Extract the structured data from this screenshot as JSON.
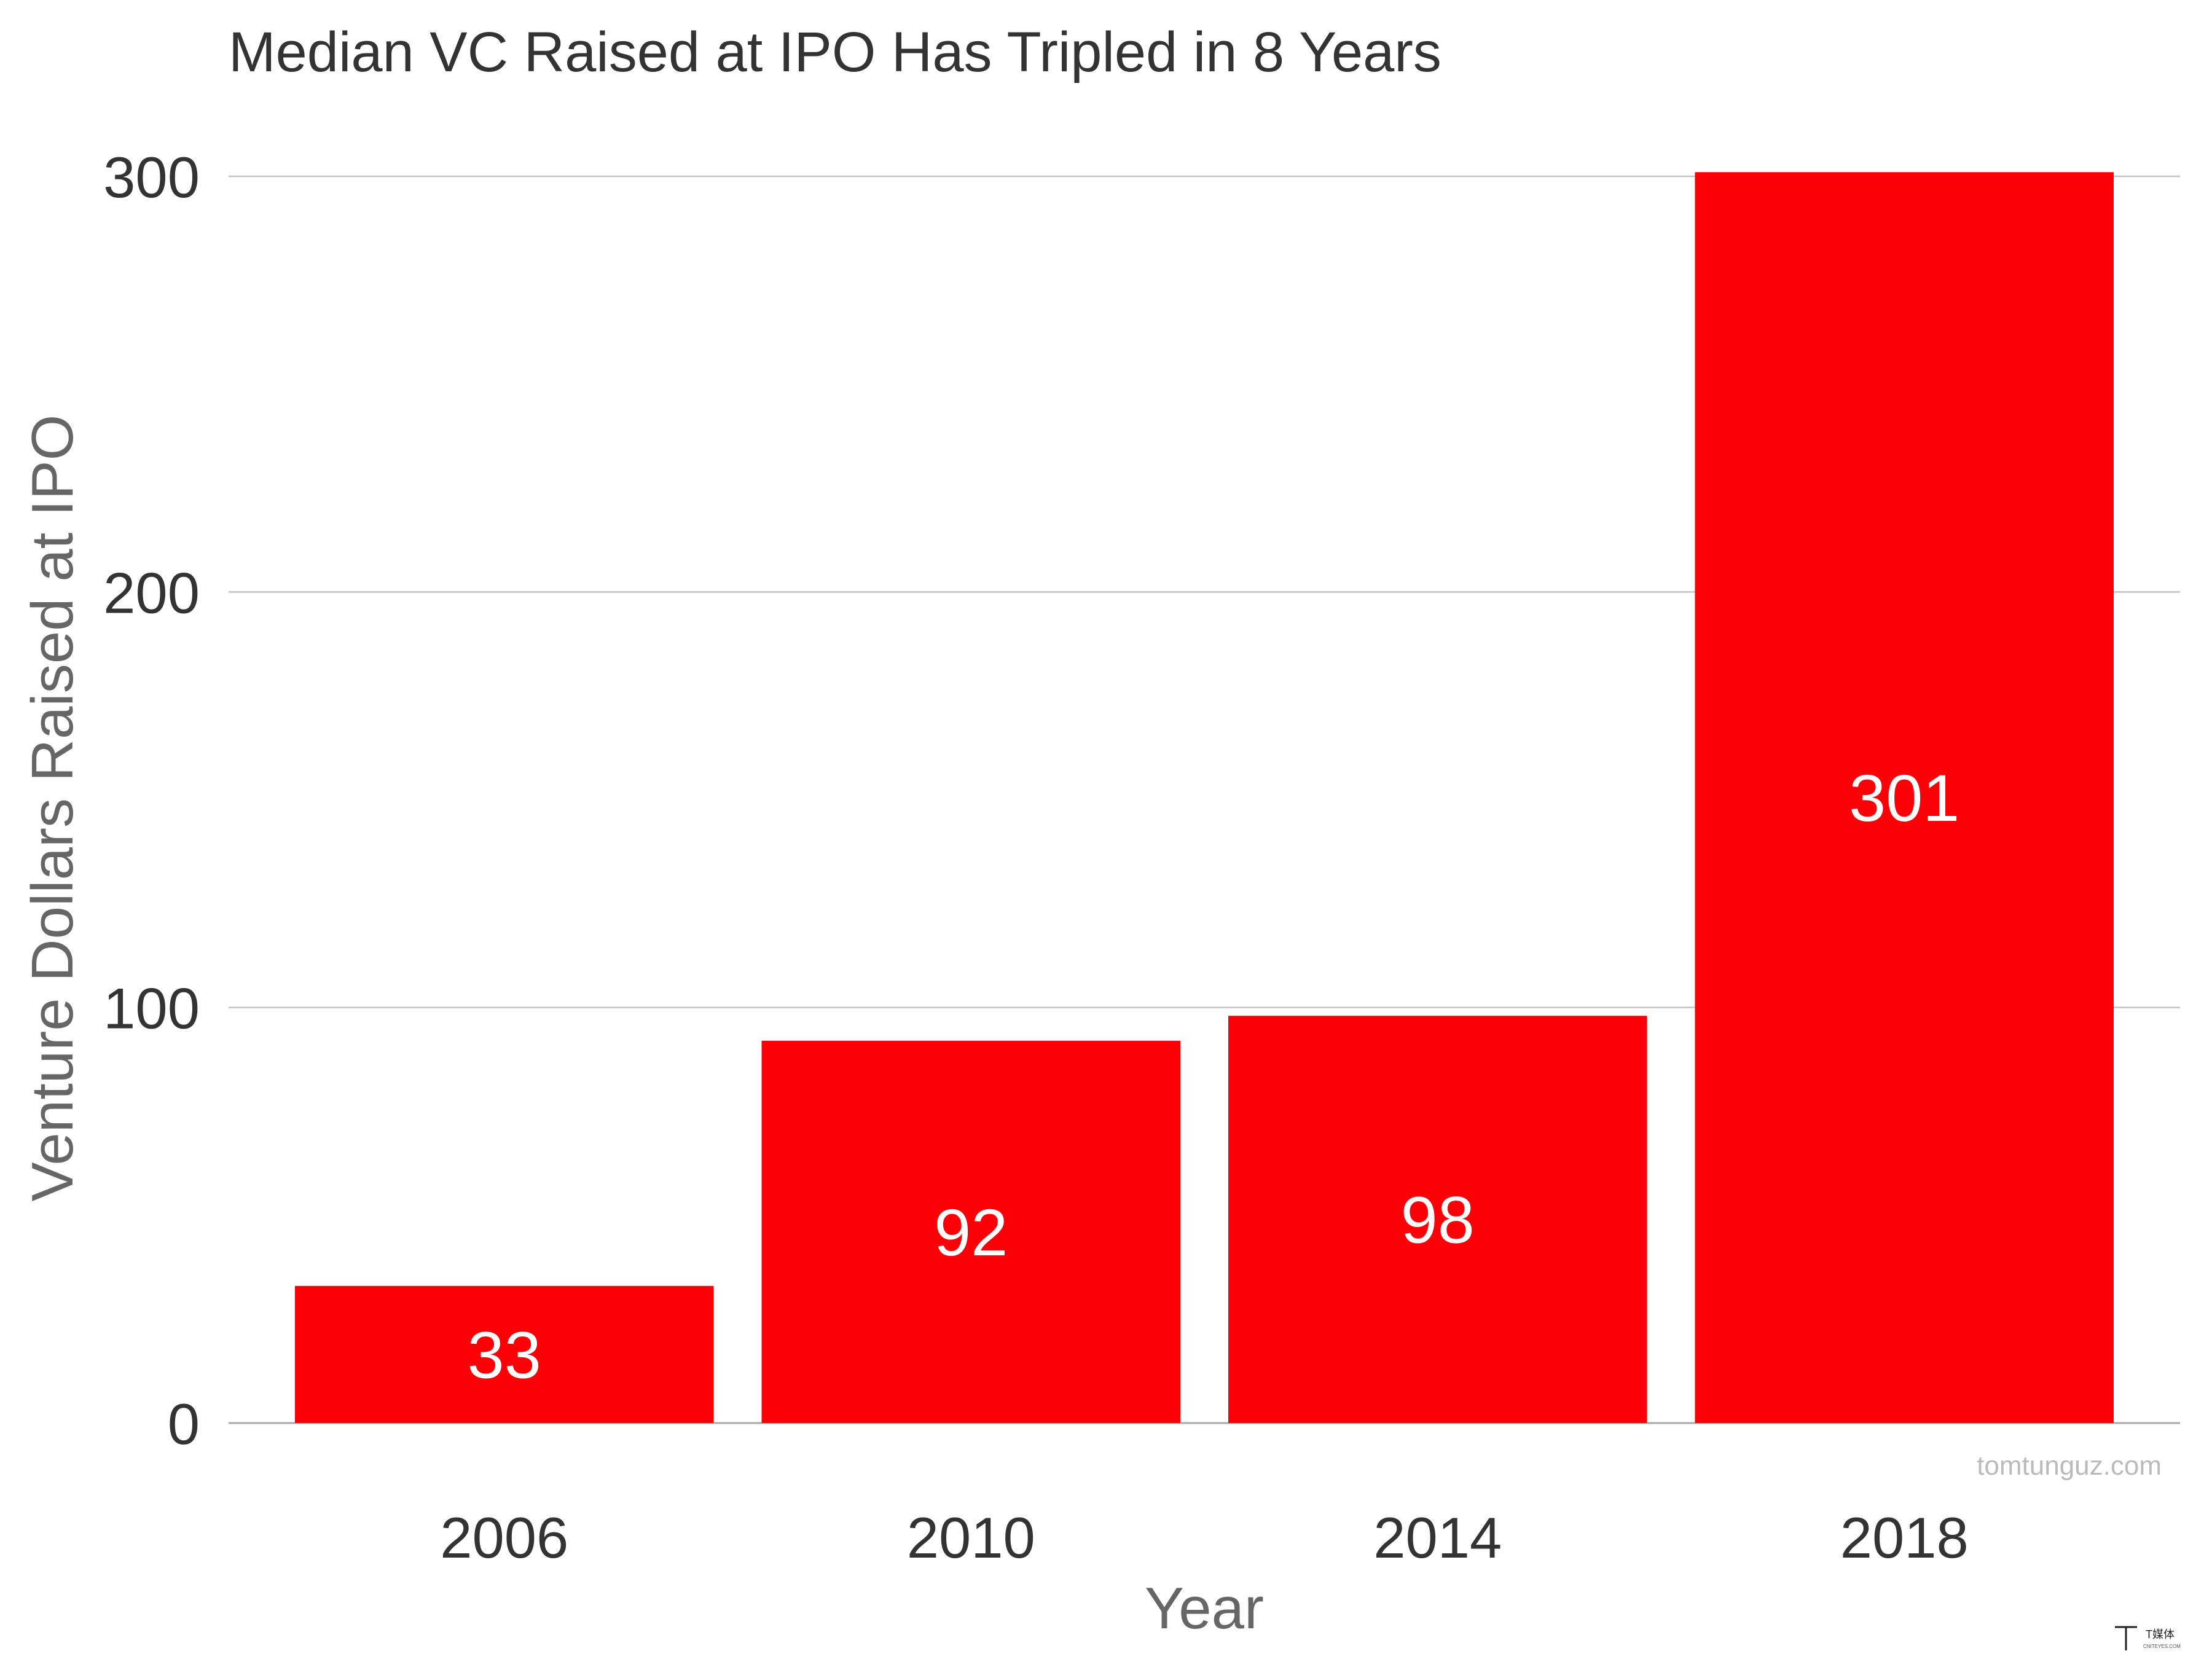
{
  "chart_data": {
    "type": "bar",
    "title": "Median VC Raised at IPO Has Tripled in 8 Years",
    "xlabel": "Year",
    "ylabel": "Venture Dollars Raised at IPO",
    "categories": [
      "2006",
      "2010",
      "2014",
      "2018"
    ],
    "values": [
      33,
      92,
      98,
      301
    ],
    "data_labels": [
      "33",
      "92",
      "98",
      "301"
    ],
    "ylim": [
      0,
      300
    ],
    "yticks": [
      0,
      100,
      200,
      300
    ],
    "ytick_labels": [
      "0",
      "100",
      "200",
      "300"
    ],
    "grid": true,
    "legend": "none",
    "bar_color": "#fc0007",
    "source": "tomtunguz.com"
  },
  "watermark": {
    "mark_glyph": "T",
    "text": "T媒体",
    "subtext": "CNITEYES.COM"
  }
}
